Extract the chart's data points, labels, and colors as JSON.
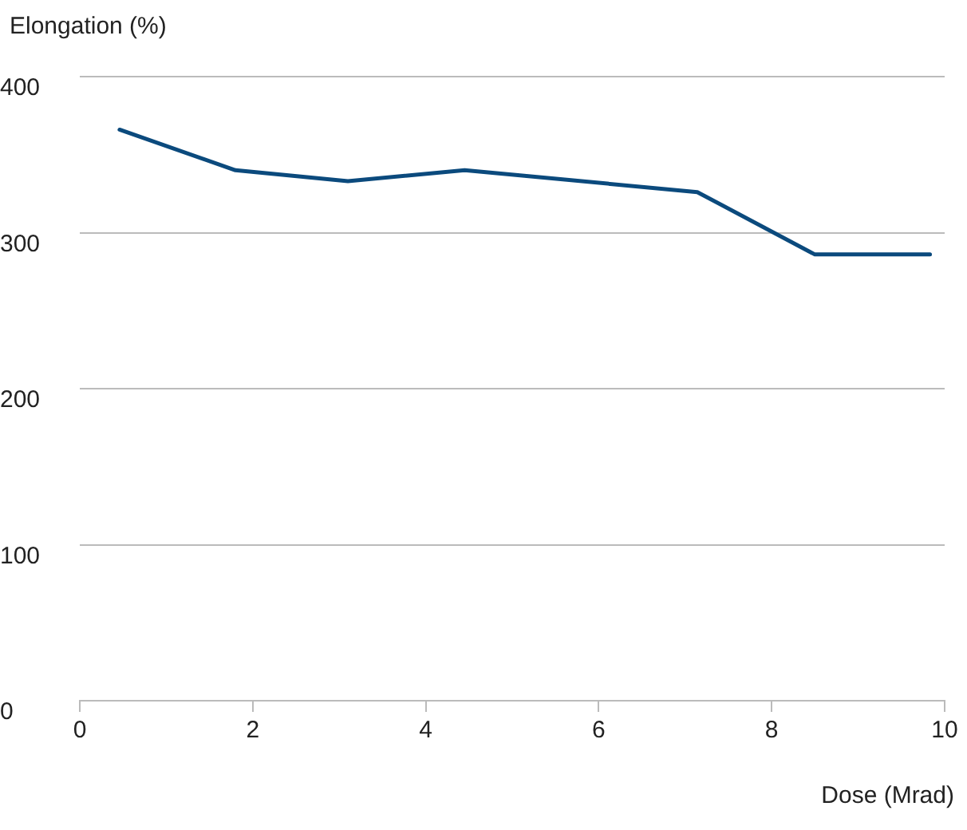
{
  "chart_data": {
    "type": "line",
    "xlabel": "Dose (Mrad)",
    "ylabel": "Elongation (%)",
    "x": [
      0.46,
      1.8,
      3.1,
      4.45,
      7.14,
      8.5,
      9.83
    ],
    "series": [
      {
        "color": "#0b4a7d",
        "values": [
          366,
          340,
          333,
          340,
          326,
          286,
          286
        ]
      }
    ],
    "xlim": [
      0,
      10
    ],
    "xticks": [
      0,
      2,
      4,
      6,
      8,
      10
    ],
    "ylim": [
      0,
      400
    ],
    "yticks": [
      0,
      100,
      200,
      300,
      400
    ],
    "grid": "y",
    "marker": "none",
    "line_style": "solid",
    "legend": false
  }
}
